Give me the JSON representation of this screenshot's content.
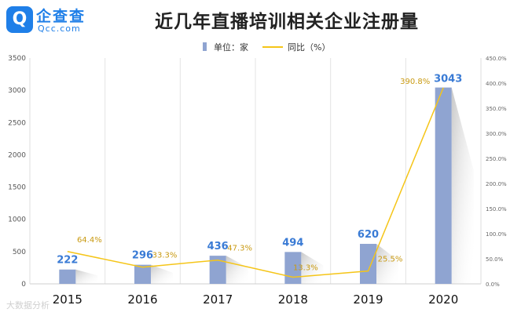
{
  "logo": {
    "mark": "Q",
    "name_cn": "企查查",
    "name_en": "Qcc.com"
  },
  "title": "近几年直播培训相关企业注册量",
  "legend": {
    "bar_label": "单位：家",
    "line_label": "同比（%）"
  },
  "watermark": "大数据分析",
  "colors": {
    "bar": "#8fa4d1",
    "line": "#f5c518",
    "bar_label": "#3a7bd5",
    "pct_label": "#c99a12"
  },
  "chart_data": {
    "type": "bar",
    "title": "近几年直播培训相关企业注册量",
    "categories": [
      "2015",
      "2016",
      "2017",
      "2018",
      "2019",
      "2020"
    ],
    "series": [
      {
        "name": "单位：家",
        "type": "bar",
        "axis": "left",
        "values": [
          222,
          296,
          436,
          494,
          620,
          3043
        ]
      },
      {
        "name": "同比（%）",
        "type": "line",
        "axis": "right",
        "values": [
          64.4,
          33.3,
          47.3,
          13.3,
          25.5,
          390.8
        ]
      }
    ],
    "value_labels": [
      "222",
      "296",
      "436",
      "494",
      "620",
      "3043"
    ],
    "pct_labels": [
      "64.4%",
      "33.3%",
      "47.3%",
      "13.3%",
      "25.5%",
      "390.8%"
    ],
    "y_left": {
      "range": [
        0,
        3500
      ],
      "ticks": [
        "0",
        "500",
        "1000",
        "1500",
        "2000",
        "2500",
        "3000",
        "3500"
      ]
    },
    "y_right": {
      "range": [
        0,
        450
      ],
      "ticks": [
        "0.0%",
        "50.0%",
        "100.0%",
        "150.0%",
        "200.0%",
        "250.0%",
        "300.0%",
        "350.0%",
        "400.0%",
        "450.0%"
      ]
    },
    "grid": "vertical",
    "legend": "top"
  }
}
